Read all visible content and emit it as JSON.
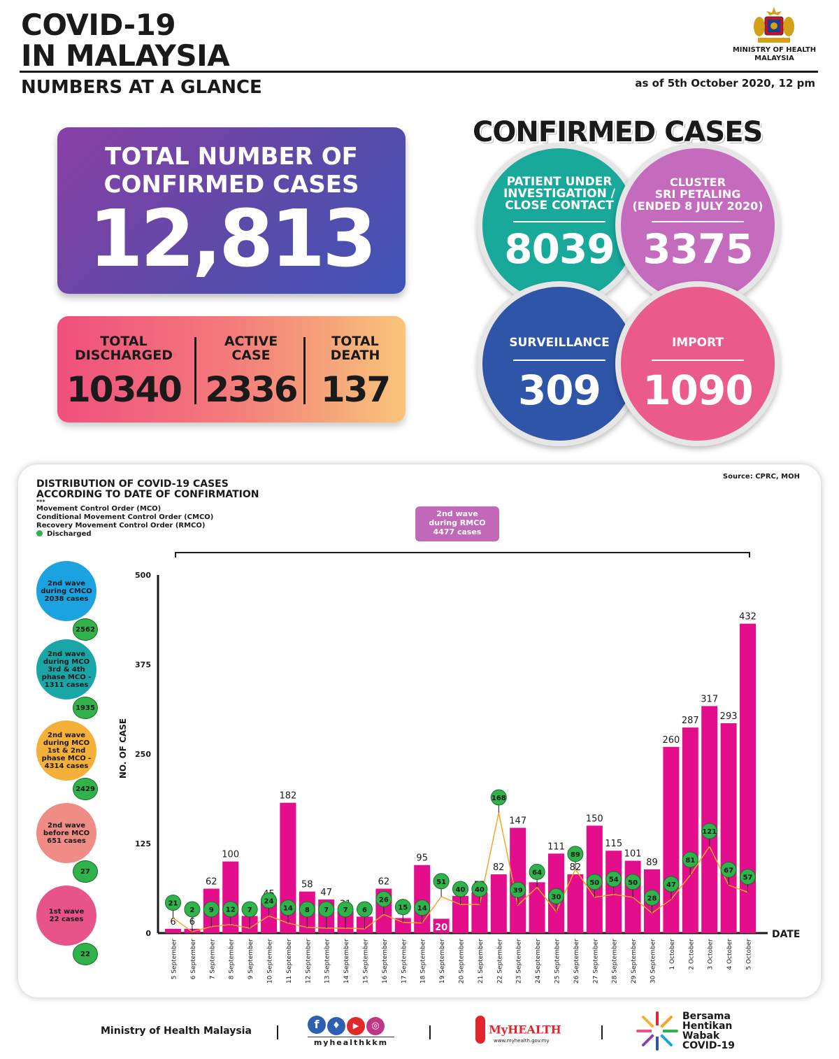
{
  "header": {
    "title_line1": "COVID-19",
    "title_line2": "IN MALAYSIA",
    "subtitle": "NUMBERS AT A GLANCE",
    "as_of": "as of 5th October 2020, 12 pm",
    "ministry_line1": "MINISTRY OF HEALTH",
    "ministry_line2": "MALAYSIA"
  },
  "total": {
    "label_line1": "TOTAL NUMBER OF",
    "label_line2": "CONFIRMED CASES",
    "value": "12,813"
  },
  "stats": [
    {
      "label_line1": "TOTAL",
      "label_line2": "DISCHARGED",
      "value": "10340"
    },
    {
      "label_line1": "ACTIVE",
      "label_line2": "CASE",
      "value": "2336"
    },
    {
      "label_line1": "TOTAL",
      "label_line2": "DEATH",
      "value": "137"
    }
  ],
  "confirmed": {
    "heading": "CONFIRMED CASES",
    "bubbles": [
      {
        "label_lines": [
          "PATIENT UNDER",
          "INVESTIGATION /",
          "CLOSE CONTACT"
        ],
        "value": "8039",
        "color": "#19a99a"
      },
      {
        "label_lines": [
          "CLUSTER",
          "SRI PETALING",
          "(ENDED 8 JULY 2020)"
        ],
        "value": "3375",
        "color": "#c56bbd"
      },
      {
        "label_lines": [
          "SURVEILLANCE"
        ],
        "value": "309",
        "color": "#2f55a8"
      },
      {
        "label_lines": [
          "IMPORT"
        ],
        "value": "1090",
        "color": "#ea5a8a"
      }
    ]
  },
  "chart_card": {
    "title_line1": "DISTRIBUTION OF COVID-19 CASES",
    "title_line2": "ACCORDING TO DATE OF CONFIRMATION",
    "legend_marker": "***",
    "legend": [
      "Movement Control Order (MCO)",
      "Conditional Movement Control Order (CMCO)",
      "Recovery Movement Control Order (RMCO)",
      "Discharged"
    ],
    "source": "Source: CPRC, MOH",
    "wave_box": [
      "2nd wave",
      "during RMCO",
      "4477 cases"
    ],
    "waves": [
      {
        "lines": [
          "2nd wave",
          "during CMCO",
          "2038 cases"
        ],
        "discharged": "2562",
        "color": "#1aa3e0"
      },
      {
        "lines": [
          "2nd wave",
          "during MCO",
          "3rd & 4th",
          "phase MCO -",
          "1311 cases"
        ],
        "discharged": "1935",
        "color": "#1aa6a6"
      },
      {
        "lines": [
          "2nd wave",
          "during MCO",
          "1st & 2nd",
          "phase MCO -",
          "4314 cases"
        ],
        "discharged": "2429",
        "color": "#f5b03a"
      },
      {
        "lines": [
          "2nd wave",
          "before MCO",
          "651 cases"
        ],
        "discharged": "27",
        "color": "#f08c86"
      },
      {
        "lines": [
          "1st wave",
          "22 cases"
        ],
        "discharged": "22",
        "color": "#e8548a"
      }
    ]
  },
  "chart_data": {
    "type": "bar",
    "ylabel": "NO. OF CASE",
    "xlabel": "DATE",
    "ylim": [
      0,
      500
    ],
    "yticks": [
      0,
      125,
      250,
      375,
      500
    ],
    "categories": [
      "5 September",
      "6 September",
      "7 September",
      "8 September",
      "9 September",
      "10 September",
      "11 September",
      "12 September",
      "13 September",
      "14 September",
      "15 September",
      "16 September",
      "17 September",
      "18 September",
      "19 September",
      "20 September",
      "21 September",
      "22 September",
      "23 September",
      "24 September",
      "25 September",
      "26 September",
      "27 September",
      "28 September",
      "29 September",
      "30 September",
      "1 October",
      "2 October",
      "3 October",
      "4 October",
      "5 October"
    ],
    "series": [
      {
        "name": "",
        "values": [
          6,
          6,
          62,
          100,
          24,
          45,
          182,
          58,
          47,
          31,
          23,
          62,
          21,
          95,
          20,
          52,
          57,
          82,
          147,
          71,
          111,
          82,
          150,
          115,
          101,
          89,
          260,
          287,
          317,
          293,
          432
        ],
        "color": "#e40d8c"
      },
      {
        "name": "Discharged",
        "values": [
          21,
          2,
          9,
          12,
          7,
          24,
          14,
          8,
          7,
          7,
          6,
          26,
          15,
          14,
          51,
          40,
          40,
          168,
          39,
          64,
          30,
          89,
          50,
          54,
          50,
          28,
          47,
          81,
          121,
          67,
          57
        ],
        "color": "#2fb34a"
      }
    ]
  },
  "footer": {
    "ministry": "Ministry of Health Malaysia",
    "social_handle": "myhealthkkm",
    "myhealth": "MyHEALTH",
    "myhealth_url": "www.myhealth.gov.my",
    "campaign": [
      "Bersama",
      "Hentikan",
      "Wabak",
      "COVID-19"
    ]
  }
}
